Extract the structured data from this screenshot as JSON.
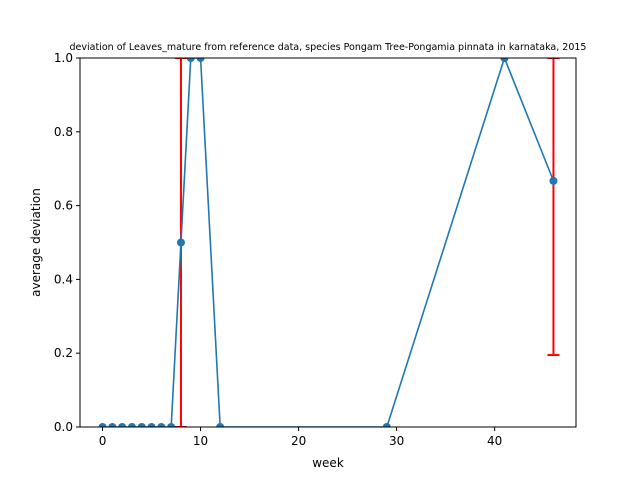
{
  "chart_data": {
    "type": "line",
    "title": "deviation of Leaves_mature from reference data, species Pongam Tree-Pongamia pinnata in karnataka, 2015",
    "xlabel": "week",
    "ylabel": "average deviation",
    "xlim": [
      -2.3,
      48.3
    ],
    "ylim": [
      0,
      1
    ],
    "xticks": [
      0,
      10,
      20,
      30,
      40
    ],
    "yticks": [
      0.0,
      0.2,
      0.4,
      0.6,
      0.8,
      1.0
    ],
    "xtick_labels": [
      "0",
      "10",
      "20",
      "30",
      "40"
    ],
    "ytick_labels": [
      "0.0",
      "0.2",
      "0.4",
      "0.6",
      "0.8",
      "1.0"
    ],
    "grid": false,
    "series": [
      {
        "color": "#1f77b4",
        "x": [
          0,
          1,
          2,
          3,
          4,
          5,
          6,
          7,
          8,
          9,
          10,
          12,
          29,
          41,
          46
        ],
        "y": [
          0,
          0,
          0,
          0,
          0,
          0,
          0,
          0,
          0.5,
          1.0,
          1.0,
          0,
          0,
          1.0,
          0.667
        ]
      }
    ],
    "error_bars": {
      "color": "#ff0000",
      "items": [
        {
          "x": 8,
          "low": 0.0,
          "high": 1.0
        },
        {
          "x": 46,
          "low": 0.195,
          "high": 1.0
        }
      ]
    }
  }
}
